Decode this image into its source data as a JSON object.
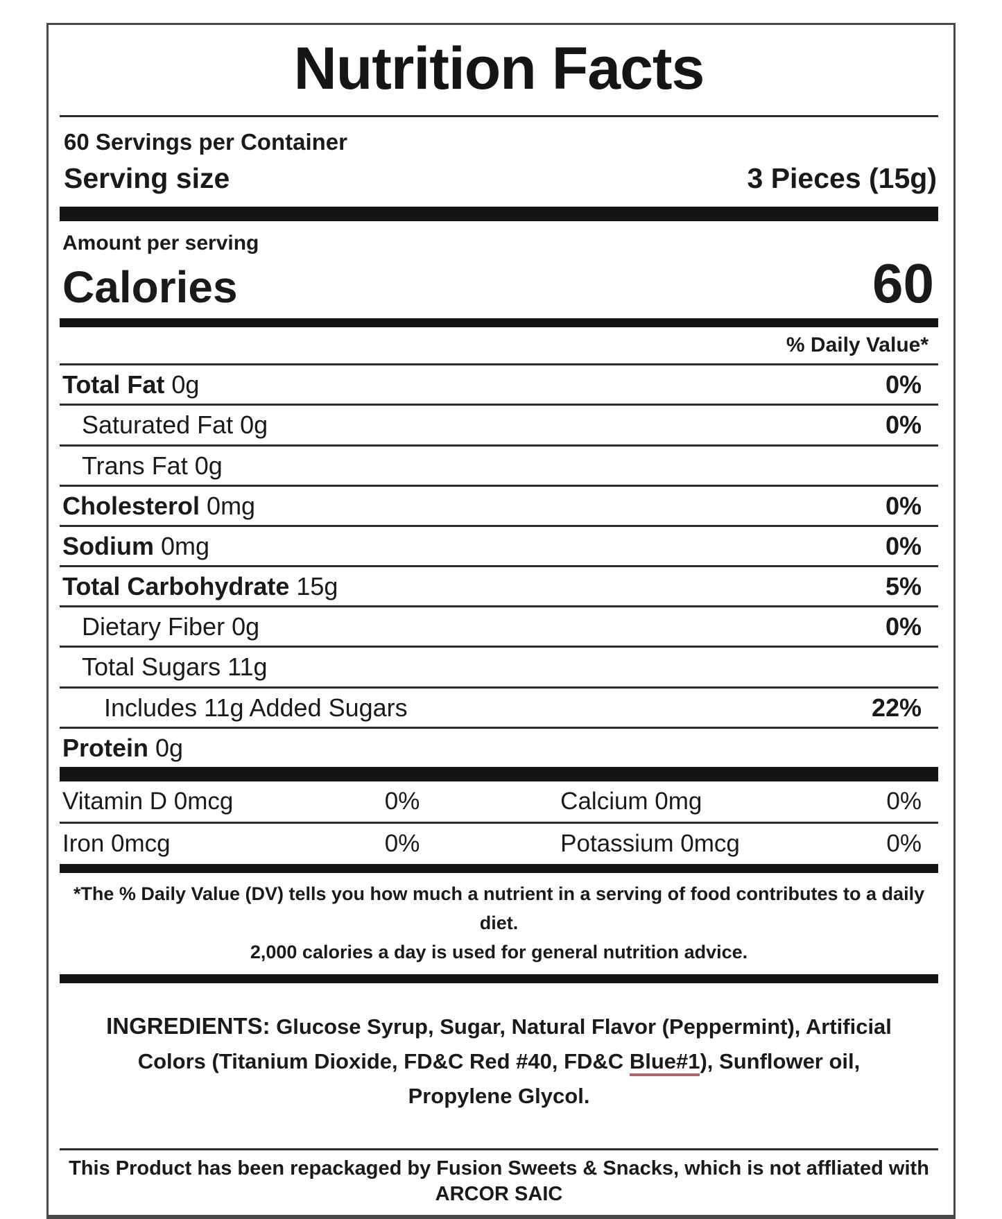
{
  "label": {
    "title": "Nutrition Facts",
    "servings_per_container": "60 Servings per Container",
    "serving_size_label": "Serving size",
    "serving_size_value": "3 Pieces (15g)",
    "amount_per_serving": "Amount per serving",
    "calories_label": "Calories",
    "calories_value": "60",
    "daily_value_header": "% Daily Value*",
    "nutrients": [
      {
        "name": "Total Fat",
        "amount": "0g",
        "dv": "0%"
      },
      {
        "name": "Saturated Fat",
        "amount": "0g",
        "dv": "0%"
      },
      {
        "name": "Trans Fat",
        "amount": "0g",
        "dv": ""
      },
      {
        "name": "Cholesterol",
        "amount": "0mg",
        "dv": "0%"
      },
      {
        "name": "Sodium",
        "amount": "0mg",
        "dv": "0%"
      },
      {
        "name": "Total Carbohydrate",
        "amount": "15g",
        "dv": "5%"
      },
      {
        "name": "Dietary Fiber",
        "amount": "0g",
        "dv": "0%"
      },
      {
        "name": "Total Sugars",
        "amount": "11g",
        "dv": ""
      },
      {
        "name": "Includes 11g Added Sugars",
        "amount": "",
        "dv": "22%"
      },
      {
        "name": "Protein",
        "amount": "0g",
        "dv": ""
      }
    ],
    "micronutrients": [
      {
        "left_name": "Vitamin D 0mcg",
        "left_dv": "0%",
        "right_name": "Calcium 0mg",
        "right_dv": "0%"
      },
      {
        "left_name": "Iron 0mcg",
        "left_dv": "0%",
        "right_name": "Potassium 0mcg",
        "right_dv": "0%"
      }
    ],
    "footnote_line1": "*The % Daily Value (DV) tells you how much a nutrient in a serving of food contributes to a daily diet.",
    "footnote_line2": "2,000 calories a day is used for general nutrition advice.",
    "ingredients_label": "INGREDIENTS:",
    "ingredients_parts": [
      " Glucose Syrup, Sugar, Natural Flavor (Peppermint), Artificial Colors (Titanium Dioxide, FD&C Red #40, FD&C ",
      "Blue#1",
      "), Sunflower oil, Propylene Glycol."
    ],
    "disclaimer": "This Product has been repackaged by Fusion Sweets & Snacks, which is not affliated with ARCOR SAIC",
    "colors": {
      "text": "#1a1a1a",
      "bar": "#141414",
      "rule": "#2b2b2b",
      "border": "#4a4a4a",
      "background": "#ffffff"
    }
  }
}
